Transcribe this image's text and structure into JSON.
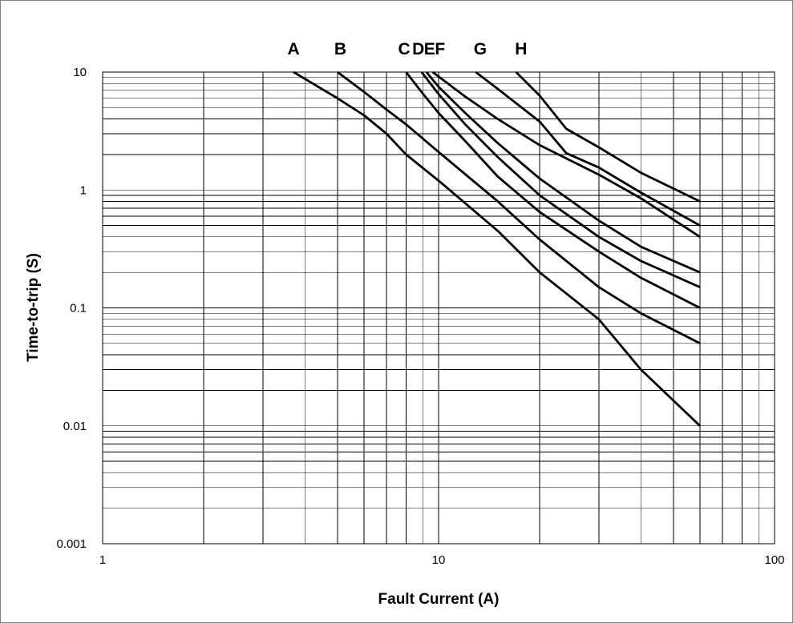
{
  "chart_data": {
    "type": "line",
    "title": "",
    "xlabel": "Fault Current (A)",
    "ylabel": "Time-to-trip (S)",
    "x_scale": "log",
    "y_scale": "log",
    "xlim": [
      1,
      100
    ],
    "ylim": [
      0.001,
      10
    ],
    "grid": true,
    "x_ticks": [
      {
        "value": 1,
        "label": "1"
      },
      {
        "value": 10,
        "label": "10"
      },
      {
        "value": 100,
        "label": "100"
      }
    ],
    "y_ticks": [
      {
        "value": 10,
        "label": "10"
      },
      {
        "value": 1,
        "label": "1"
      },
      {
        "value": 0.1,
        "label": "0.1"
      },
      {
        "value": 0.01,
        "label": "0.01"
      },
      {
        "value": 0.001,
        "label": "0.001"
      }
    ],
    "series": [
      {
        "name": "A",
        "label_x": 3.7,
        "points": [
          [
            3.7,
            10
          ],
          [
            5,
            6
          ],
          [
            6,
            4.3
          ],
          [
            7,
            3
          ],
          [
            8,
            2
          ],
          [
            10,
            1.2
          ],
          [
            15,
            0.45
          ],
          [
            20,
            0.2
          ],
          [
            30,
            0.08
          ],
          [
            40,
            0.03
          ],
          [
            60,
            0.01
          ]
        ]
      },
      {
        "name": "B",
        "label_x": 5.1,
        "points": [
          [
            5,
            10
          ],
          [
            6,
            6.8
          ],
          [
            7,
            4.8
          ],
          [
            8,
            3.6
          ],
          [
            10,
            2.1
          ],
          [
            15,
            0.8
          ],
          [
            20,
            0.38
          ],
          [
            30,
            0.15
          ],
          [
            40,
            0.09
          ],
          [
            60,
            0.05
          ]
        ]
      },
      {
        "name": "C",
        "label_x": 7.9,
        "points": [
          [
            8,
            10
          ],
          [
            9,
            6.5
          ],
          [
            10,
            4.5
          ],
          [
            12,
            2.6
          ],
          [
            15,
            1.3
          ],
          [
            20,
            0.65
          ],
          [
            30,
            0.3
          ],
          [
            40,
            0.18
          ],
          [
            60,
            0.1
          ]
        ]
      },
      {
        "name": "D",
        "label_x": 8.7,
        "points": [
          [
            8.9,
            10
          ],
          [
            10,
            6.5
          ],
          [
            12,
            3.6
          ],
          [
            15,
            1.9
          ],
          [
            20,
            0.9
          ],
          [
            30,
            0.4
          ],
          [
            40,
            0.25
          ],
          [
            60,
            0.15
          ]
        ]
      },
      {
        "name": "E",
        "label_x": 9.4,
        "points": [
          [
            9.2,
            10
          ],
          [
            10,
            7.5
          ],
          [
            12,
            4.5
          ],
          [
            15,
            2.5
          ],
          [
            20,
            1.25
          ],
          [
            30,
            0.55
          ],
          [
            40,
            0.33
          ],
          [
            60,
            0.2
          ]
        ]
      },
      {
        "name": "F",
        "label_x": 10.1,
        "points": [
          [
            9.6,
            10
          ],
          [
            12,
            6.2
          ],
          [
            15,
            4
          ],
          [
            20,
            2.4
          ],
          [
            30,
            1.35
          ],
          [
            40,
            0.85
          ],
          [
            60,
            0.4
          ]
        ]
      },
      {
        "name": "G",
        "label_x": 13.3,
        "points": [
          [
            12.9,
            10
          ],
          [
            15,
            7.2
          ],
          [
            20,
            3.8
          ],
          [
            24,
            2.05
          ],
          [
            30,
            1.55
          ],
          [
            40,
            0.95
          ],
          [
            60,
            0.5
          ]
        ]
      },
      {
        "name": "H",
        "label_x": 17.6,
        "points": [
          [
            17,
            10
          ],
          [
            20,
            6.3
          ],
          [
            24,
            3.3
          ],
          [
            30,
            2.3
          ],
          [
            40,
            1.4
          ],
          [
            60,
            0.8
          ]
        ]
      }
    ]
  }
}
